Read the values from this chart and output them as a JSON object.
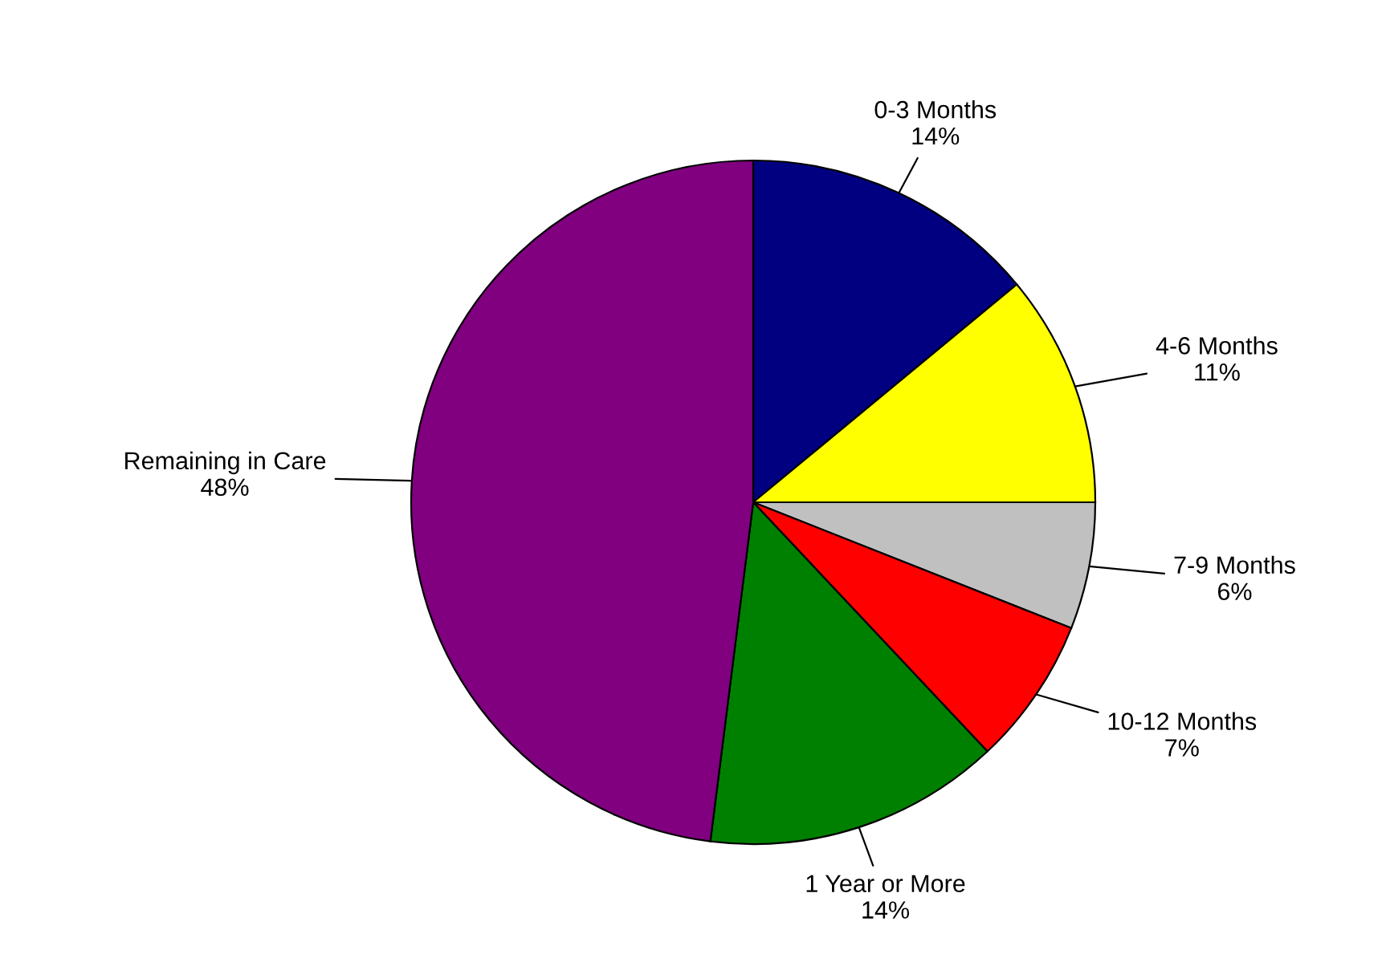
{
  "chart_data": {
    "type": "pie",
    "categories": [
      "0-3 Months",
      "4-6 Months",
      "7-9 Months",
      "10-12 Months",
      "1 Year or More",
      "Remaining in Care"
    ],
    "values": [
      14,
      11,
      6,
      7,
      14,
      48
    ],
    "colors": [
      "#000080",
      "#ffff00",
      "#c0c0c0",
      "#ff0000",
      "#008000",
      "#800080"
    ],
    "value_labels": [
      "14%",
      "11%",
      "6%",
      "7%",
      "14%",
      "48%"
    ],
    "legend": false
  }
}
